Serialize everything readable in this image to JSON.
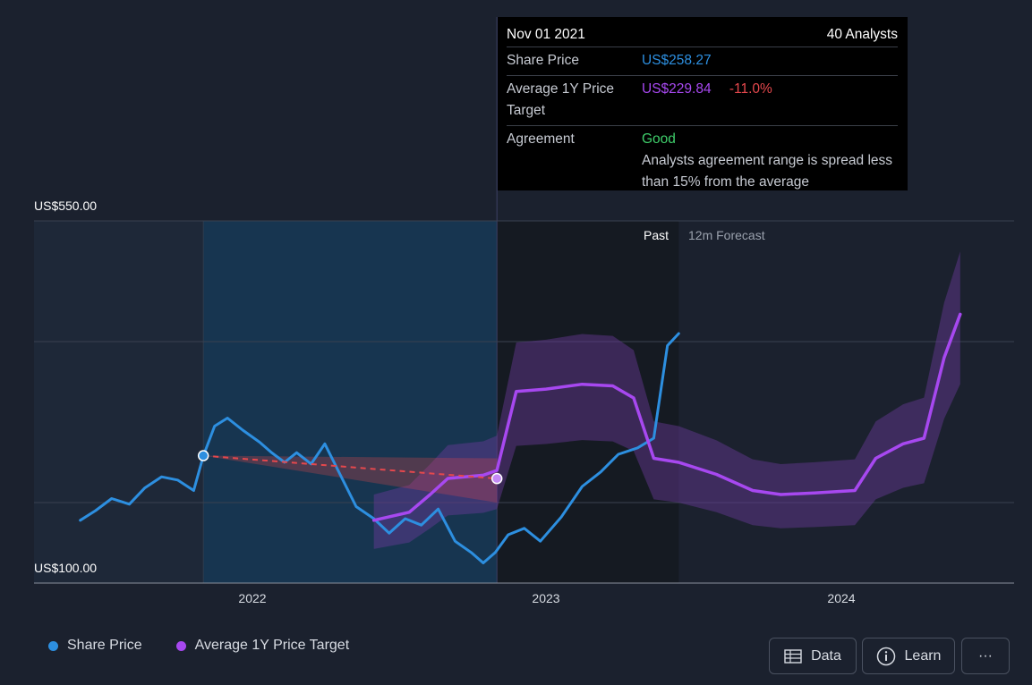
{
  "chart_data": {
    "type": "line",
    "y_axis": {
      "top_label": "US$550.00",
      "bottom_label": "US$100.00",
      "ylim": [
        100,
        550
      ]
    },
    "x_ticks": [
      "2022",
      "2023",
      "2024"
    ],
    "regions": {
      "past_label": "Past",
      "forecast_label": "12m Forecast"
    },
    "series": [
      {
        "name": "Share Price",
        "color": "#2d8fe0",
        "points": [
          [
            "2021-06-01",
            178
          ],
          [
            "2021-06-20",
            190
          ],
          [
            "2021-07-10",
            205
          ],
          [
            "2021-08-01",
            198
          ],
          [
            "2021-08-20",
            218
          ],
          [
            "2021-09-10",
            232
          ],
          [
            "2021-09-30",
            228
          ],
          [
            "2021-10-20",
            215
          ],
          [
            "2021-11-01",
            258
          ],
          [
            "2021-11-15",
            295
          ],
          [
            "2021-12-01",
            305
          ],
          [
            "2021-12-20",
            290
          ],
          [
            "2022-01-10",
            275
          ],
          [
            "2022-01-25",
            262
          ],
          [
            "2022-02-10",
            250
          ],
          [
            "2022-02-25",
            262
          ],
          [
            "2022-03-15",
            248
          ],
          [
            "2022-04-01",
            273
          ],
          [
            "2022-04-20",
            235
          ],
          [
            "2022-05-10",
            195
          ],
          [
            "2022-06-01",
            180
          ],
          [
            "2022-06-20",
            162
          ],
          [
            "2022-07-10",
            180
          ],
          [
            "2022-07-30",
            172
          ],
          [
            "2022-08-20",
            192
          ],
          [
            "2022-09-10",
            152
          ],
          [
            "2022-09-30",
            138
          ],
          [
            "2022-10-15",
            125
          ],
          [
            "2022-10-30",
            138
          ],
          [
            "2022-11-15",
            160
          ],
          [
            "2022-12-05",
            168
          ],
          [
            "2022-12-25",
            152
          ],
          [
            "2023-01-20",
            182
          ],
          [
            "2023-02-15",
            220
          ],
          [
            "2023-03-10",
            238
          ],
          [
            "2023-04-01",
            260
          ],
          [
            "2023-04-25",
            268
          ],
          [
            "2023-05-15",
            280
          ],
          [
            "2023-06-01",
            395
          ],
          [
            "2023-06-15",
            410
          ]
        ]
      },
      {
        "name": "Average 1Y Price Target",
        "color": "#a748f0",
        "points": [
          [
            "2022-06-01",
            178
          ],
          [
            "2022-07-15",
            188
          ],
          [
            "2022-08-10",
            210
          ],
          [
            "2022-09-01",
            230
          ],
          [
            "2022-10-15",
            234
          ],
          [
            "2022-11-01",
            240
          ],
          [
            "2022-11-25",
            338
          ],
          [
            "2023-01-01",
            341
          ],
          [
            "2023-02-15",
            347
          ],
          [
            "2023-03-25",
            345
          ],
          [
            "2023-04-20",
            330
          ],
          [
            "2023-05-15",
            255
          ],
          [
            "2023-06-15",
            250
          ],
          [
            "2023-08-01",
            235
          ],
          [
            "2023-09-15",
            215
          ],
          [
            "2023-10-20",
            210
          ],
          [
            "2023-12-01",
            212
          ],
          [
            "2024-01-20",
            215
          ],
          [
            "2024-02-15",
            255
          ],
          [
            "2024-03-20",
            273
          ],
          [
            "2024-04-15",
            280
          ],
          [
            "2024-05-10",
            380
          ],
          [
            "2024-05-30",
            434
          ]
        ]
      }
    ],
    "tooltip": {
      "date": "Nov 01 2021",
      "analysts": "40 Analysts",
      "share_price_label": "Share Price",
      "share_price": "US$258.27",
      "target_label": "Average 1Y Price Target",
      "target": "US$229.84",
      "change": "-11.0%",
      "agreement_label": "Agreement",
      "agreement": "Good",
      "agreement_note": "Analysts agreement range is spread less than 15% from the average"
    },
    "colors": {
      "background": "#1b212e",
      "share_price": "#2d8fe0",
      "price_target": "#a748f0",
      "negative": "#e5484d",
      "good": "#3fcf6b"
    }
  },
  "legend": {
    "share_price": "Share Price",
    "target": "Average 1Y Price Target"
  },
  "buttons": {
    "data": "Data",
    "learn": "Learn",
    "more": "···"
  }
}
